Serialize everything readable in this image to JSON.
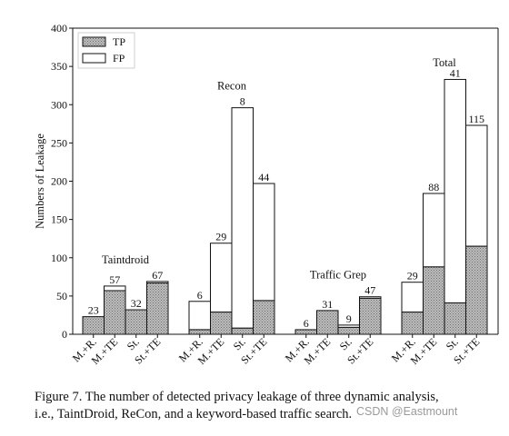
{
  "chart_data": {
    "type": "bar",
    "title": "",
    "xlabel": "",
    "ylabel": "Numbers of Leakage",
    "ylim": [
      0,
      400
    ],
    "yticks": [
      0,
      50,
      100,
      150,
      200,
      250,
      300,
      350,
      400
    ],
    "grid": false,
    "legend": {
      "placement": "top-left",
      "entries": [
        "TP",
        "FP"
      ]
    },
    "series": [
      {
        "name": "TP",
        "pattern": "hatched-gray"
      },
      {
        "name": "FP",
        "pattern": "white"
      }
    ],
    "groups": [
      {
        "label": "Taintdroid",
        "categories": [
          "M.+R.",
          "M.+TE",
          "St.",
          "St.+TE"
        ],
        "tp": [
          23,
          57,
          32,
          67
        ],
        "fp": [
          0,
          6,
          0,
          2
        ]
      },
      {
        "label": "Recon",
        "categories": [
          "M.+R.",
          "M.+TE",
          "St.",
          "St.+TE"
        ],
        "tp": [
          6,
          29,
          8,
          44
        ],
        "fp": [
          37,
          90,
          288,
          153
        ]
      },
      {
        "label": "Traffic Grep",
        "categories": [
          "M.+R.",
          "M.+TE",
          "St.",
          "St.+TE"
        ],
        "tp": [
          6,
          31,
          9,
          47
        ],
        "fp": [
          0,
          0,
          3,
          2
        ]
      },
      {
        "label": "Total",
        "categories": [
          "M.+R.",
          "M.+TE",
          "St.",
          "St.+TE"
        ],
        "tp": [
          29,
          88,
          41,
          115
        ],
        "fp": [
          39,
          96,
          292,
          158
        ]
      }
    ]
  },
  "caption": {
    "line1": "Figure 7.  The number of detected privacy leakage of three dynamic analysis,",
    "line2": "i.e., TaintDroid, ReCon, and a keyword-based traffic search."
  },
  "watermark": "CSDN @Eastmount"
}
